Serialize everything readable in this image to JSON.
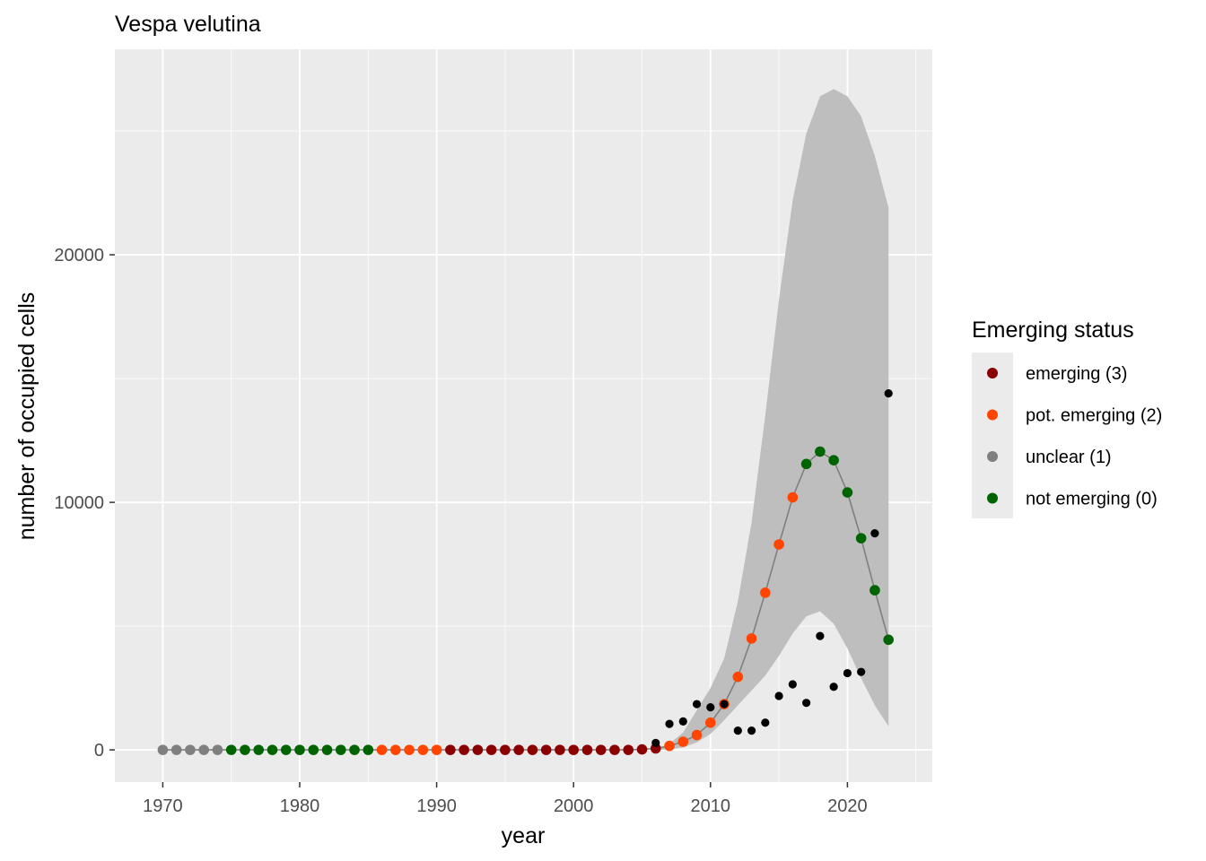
{
  "chart_data": {
    "type": "scatter",
    "title": "Vespa velutina",
    "xlabel": "year",
    "ylabel": "number of occupied cells",
    "xlim": [
      1966.5,
      2026.2
    ],
    "ylim": [
      -1300,
      28300
    ],
    "x_ticks": [
      1970,
      1980,
      1990,
      2000,
      2010,
      2020
    ],
    "y_ticks": [
      0,
      10000,
      20000
    ],
    "x_tick_labels": [
      "1970",
      "1980",
      "1990",
      "2000",
      "2010",
      "2020"
    ],
    "y_tick_labels": [
      "0",
      "10000",
      "20000"
    ],
    "grid": true,
    "colors": {
      "panel_background": "#ebebeb",
      "grid": "#ffffff",
      "ribbon": "#bebebe",
      "fitted_line": "#7f7f7f",
      "observed_points": "#000000"
    },
    "legend": {
      "title": "Emerging status",
      "position": "right",
      "entries": [
        {
          "label": "emerging (3)",
          "color": "#8b0000"
        },
        {
          "label": "pot. emerging (2)",
          "color": "#ff4500"
        },
        {
          "label": "unclear (1)",
          "color": "#808080"
        },
        {
          "label": "not emerging (0)",
          "color": "#006400"
        }
      ]
    },
    "observed": {
      "x": [
        2006,
        2007,
        2008,
        2009,
        2010,
        2011,
        2012,
        2013,
        2014,
        2015,
        2016,
        2017,
        2018,
        2019,
        2020,
        2021,
        2022,
        2023
      ],
      "y": [
        280,
        1050,
        1150,
        1850,
        1720,
        1850,
        780,
        780,
        1100,
        2180,
        2650,
        1900,
        4600,
        2550,
        3100,
        3150,
        8750,
        14400
      ]
    },
    "ribbon": {
      "x": [
        2006,
        2007,
        2008,
        2009,
        2010,
        2011,
        2012,
        2013,
        2014,
        2015,
        2016,
        2017,
        2018,
        2019,
        2020,
        2021,
        2022,
        2023
      ],
      "lower": [
        0,
        20,
        100,
        300,
        650,
        1200,
        1800,
        2400,
        3000,
        3800,
        4700,
        5400,
        5600,
        5100,
        4100,
        2900,
        1800,
        950
      ],
      "upper": [
        0,
        250,
        700,
        1600,
        2500,
        3700,
        6000,
        9200,
        13500,
        18200,
        22200,
        24900,
        26400,
        26700,
        26400,
        25600,
        24000,
        21900
      ]
    },
    "fitted": {
      "x": [
        1970,
        1971,
        1972,
        1973,
        1974,
        1975,
        1976,
        1977,
        1978,
        1979,
        1980,
        1981,
        1982,
        1983,
        1984,
        1985,
        1986,
        1987,
        1988,
        1989,
        1990,
        1991,
        1992,
        1993,
        1994,
        1995,
        1996,
        1997,
        1998,
        1999,
        2000,
        2001,
        2002,
        2003,
        2004,
        2005,
        2006,
        2007,
        2008,
        2009,
        2010,
        2011,
        2012,
        2013,
        2014,
        2015,
        2016,
        2017,
        2018,
        2019,
        2020,
        2021,
        2022,
        2023
      ],
      "y": [
        0,
        0,
        0,
        0,
        0,
        0,
        0,
        0,
        0,
        0,
        0,
        0,
        0,
        0,
        0,
        0,
        0,
        0,
        0,
        0,
        0,
        0,
        0,
        0,
        0,
        0,
        0,
        0,
        0,
        0,
        0,
        0,
        0,
        0,
        0,
        20,
        60,
        160,
        330,
        600,
        1100,
        1850,
        2950,
        4500,
        6350,
        8300,
        10200,
        11550,
        12050,
        11700,
        10400,
        8550,
        6450,
        4450
      ],
      "status": [
        1,
        1,
        1,
        1,
        1,
        0,
        0,
        0,
        0,
        0,
        0,
        0,
        0,
        0,
        0,
        0,
        2,
        2,
        2,
        2,
        2,
        3,
        3,
        3,
        3,
        3,
        3,
        3,
        3,
        3,
        3,
        3,
        3,
        3,
        3,
        3,
        3,
        2,
        2,
        2,
        2,
        2,
        2,
        2,
        2,
        2,
        2,
        0,
        0,
        0,
        0,
        0,
        0,
        0
      ]
    }
  }
}
